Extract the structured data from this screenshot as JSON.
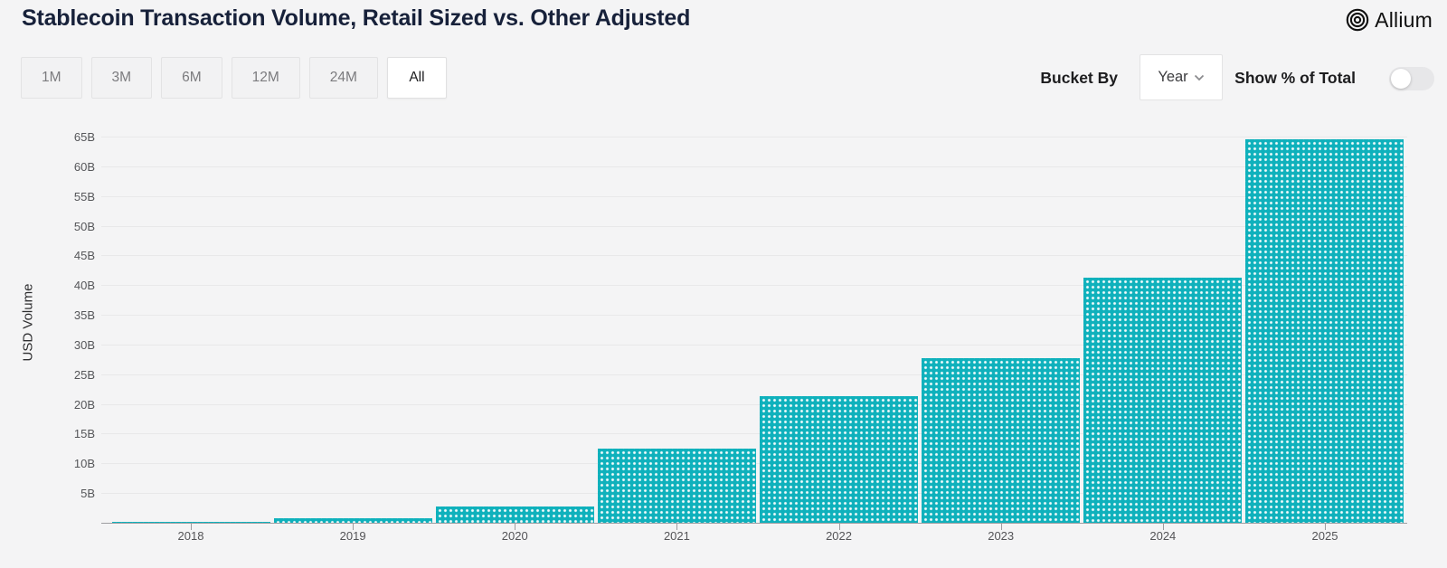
{
  "header": {
    "title": "Stablecoin Transaction Volume, Retail Sized vs. Other Adjusted",
    "brand": "Allium"
  },
  "controls": {
    "range_buttons": [
      {
        "label": "1M",
        "active": false
      },
      {
        "label": "3M",
        "active": false
      },
      {
        "label": "6M",
        "active": false
      },
      {
        "label": "12M",
        "active": false
      },
      {
        "label": "24M",
        "active": false
      },
      {
        "label": "All",
        "active": true
      }
    ],
    "bucket_by_label": "Bucket By",
    "bucket_value": "Year",
    "show_pct_label": "Show % of Total",
    "show_pct_toggle_on": false
  },
  "chart_data": {
    "type": "bar",
    "title": "Stablecoin Transaction Volume, Retail Sized vs. Other Adjusted",
    "xlabel": "",
    "ylabel": "USD Volume",
    "unit": "B (USD billions)",
    "categories": [
      "2018",
      "2019",
      "2020",
      "2021",
      "2022",
      "2023",
      "2024",
      "2025"
    ],
    "values": [
      0.1,
      0.8,
      2.7,
      12.5,
      21.3,
      27.7,
      41.2,
      64.5
    ],
    "ylim": [
      0,
      65
    ],
    "yticks": [
      5,
      10,
      15,
      20,
      25,
      30,
      35,
      40,
      45,
      50,
      55,
      60,
      65
    ],
    "ytick_labels": [
      "5B",
      "10B",
      "15B",
      "20B",
      "25B",
      "30B",
      "35B",
      "40B",
      "45B",
      "50B",
      "55B",
      "60B",
      "65B"
    ],
    "grid": true,
    "legend": "none",
    "bar_color": "#0fb1bc",
    "bar_pattern": "white-dot-grid"
  },
  "colors": {
    "page_bg": "#f4f4f5",
    "title_text": "#17213a",
    "grid_line": "#e8e8e9",
    "axis_line": "#9d9da0",
    "bar_teal": "#0fb1bc"
  },
  "icons": {
    "brand_logo": "concentric-circles",
    "dropdown_chevron": "chevron-down",
    "toggle": "switch-off"
  }
}
